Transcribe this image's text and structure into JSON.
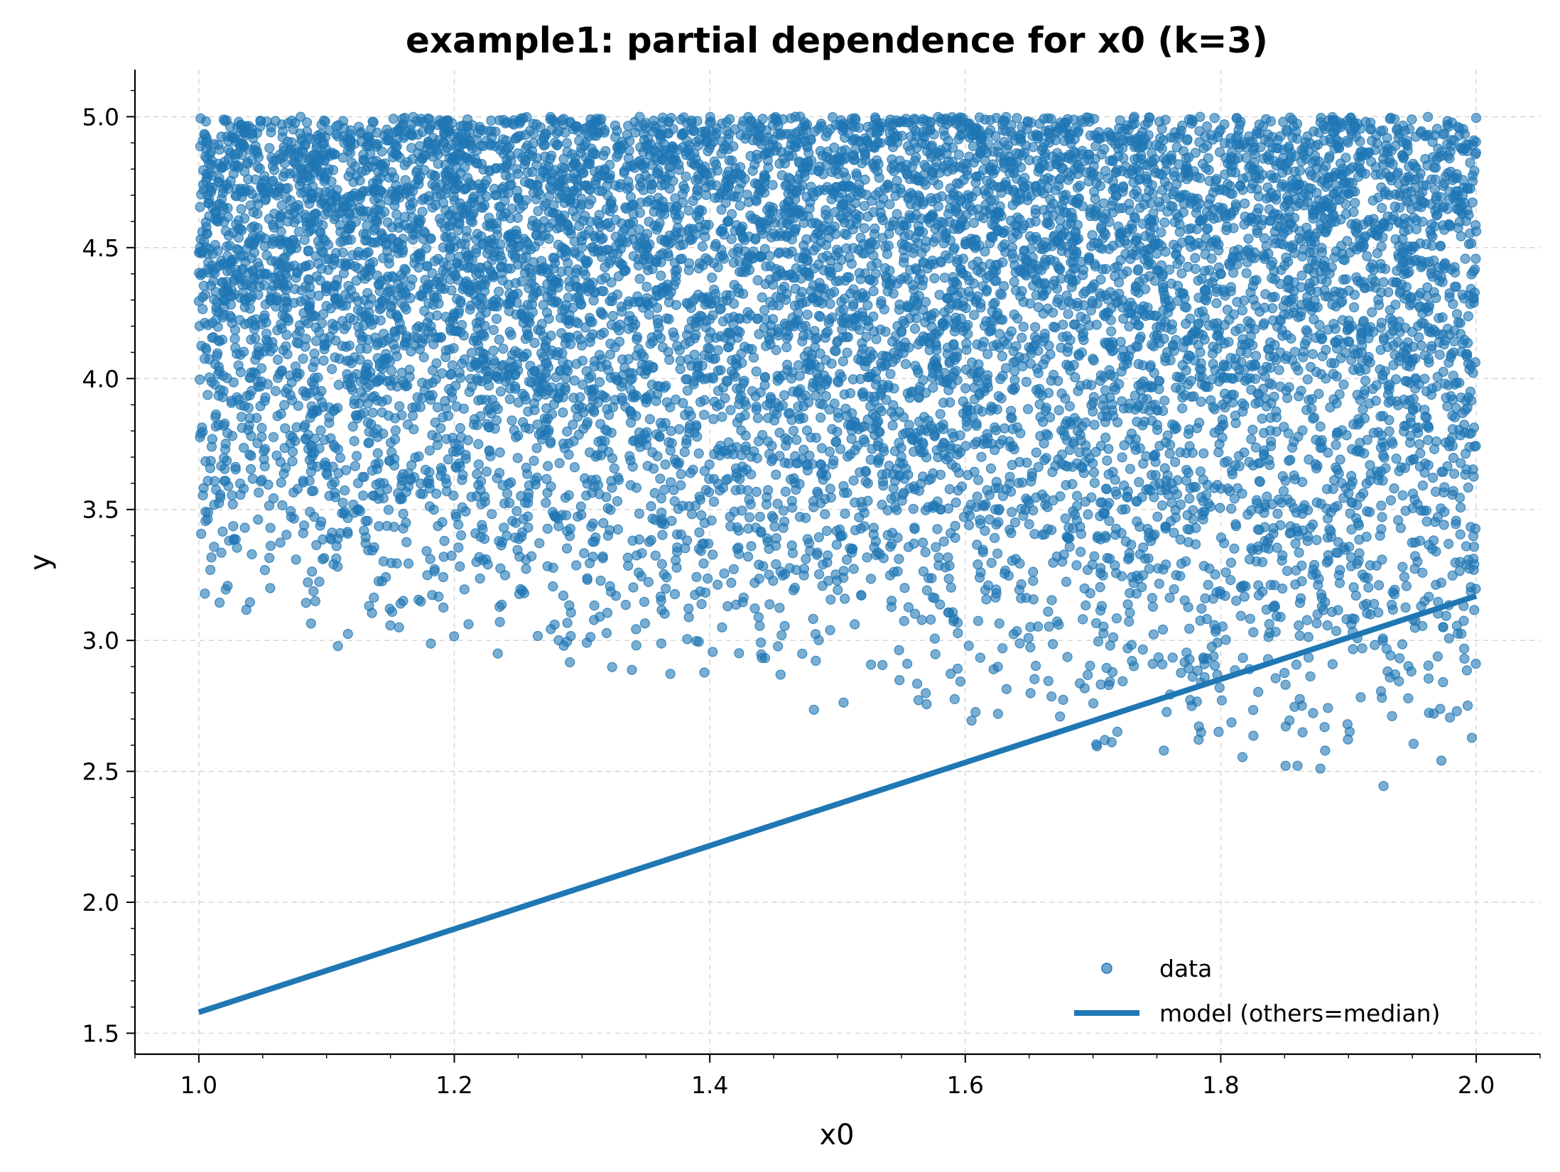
{
  "chart_data": {
    "type": "scatter",
    "title": "example1: partial dependence for x0 (k=3)",
    "xlabel": "x0",
    "ylabel": "y",
    "xlim": [
      0.95,
      2.05
    ],
    "ylim": [
      1.42,
      5.18
    ],
    "xticks": [
      1.0,
      1.2,
      1.4,
      1.6,
      1.8,
      2.0
    ],
    "xtick_labels": [
      "1.0",
      "1.2",
      "1.4",
      "1.6",
      "1.8",
      "2.0"
    ],
    "yticks": [
      1.5,
      2.0,
      2.5,
      3.0,
      3.5,
      4.0,
      4.5,
      5.0
    ],
    "ytick_labels": [
      "1.5",
      "2.0",
      "2.5",
      "3.0",
      "3.5",
      "4.0",
      "4.5",
      "5.0"
    ],
    "grid": true,
    "legend_position": "lower-right",
    "colors": {
      "series": "#1f77b4"
    },
    "series": [
      {
        "name": "data",
        "kind": "scatter",
        "n_points": 9000,
        "x_range": [
          1.0,
          2.0
        ],
        "y_max": 5.0,
        "lower_envelope": {
          "x": [
            1.0,
            1.1,
            1.2,
            1.3,
            1.4,
            1.5,
            1.6,
            1.7,
            1.8,
            1.9,
            2.0
          ],
          "y": [
            3.0,
            2.95,
            2.9,
            2.85,
            2.72,
            2.66,
            2.6,
            2.55,
            2.42,
            2.39,
            2.45
          ]
        }
      },
      {
        "name": "model (others=median)",
        "kind": "line",
        "x": [
          1.0,
          2.0
        ],
        "y": [
          1.58,
          3.17
        ]
      }
    ]
  }
}
